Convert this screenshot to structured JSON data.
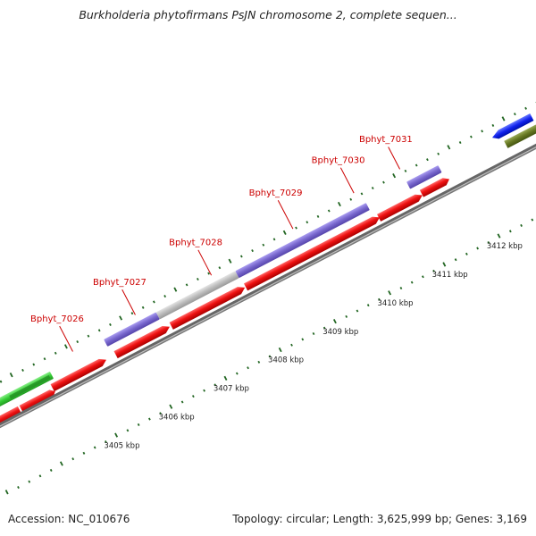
{
  "title": "Burkholderia phytofirmans PsJN chromosome 2, complete sequen...",
  "footer": {
    "accession": "Accession: NC_010676",
    "summary": "Topology: circular; Length: 3,625,999 bp; Genes: 3,169"
  },
  "gene_labels": [
    "Bphyt_7026",
    "Bphyt_7027",
    "Bphyt_7028",
    "Bphyt_7029",
    "Bphyt_7030",
    "Bphyt_7031"
  ],
  "kbp_labels": [
    "3405 kbp",
    "3406 kbp",
    "3407 kbp",
    "3408 kbp",
    "3409 kbp",
    "3410 kbp",
    "3411 kbp",
    "3412 kbp"
  ],
  "colors": {
    "gene_label": "#cc0000",
    "cds": "#ee1111",
    "track_purple": "#7766cc",
    "track_gray": "#bbbbbb",
    "track_green": "#33cc33",
    "track_blue": "#1122ee",
    "track_olive": "#667722",
    "backbone": "#666666",
    "ticks": "#226622"
  }
}
